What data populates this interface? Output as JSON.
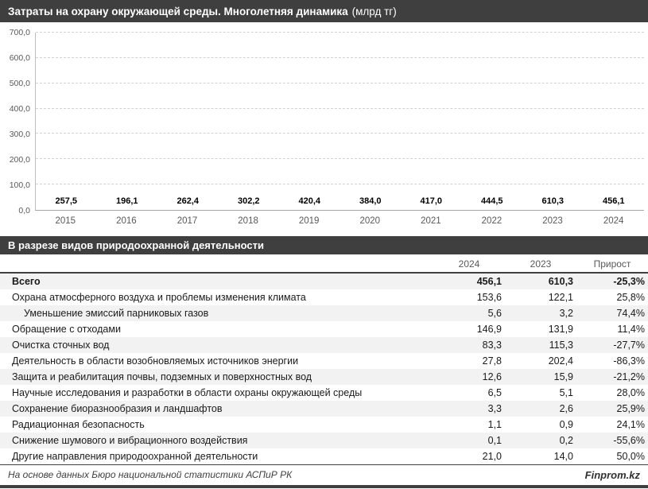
{
  "header": {
    "title": "Затраты на охрану окружающей среды. Многолетняя динамика",
    "unit": "(млрд тг)"
  },
  "chart_data": {
    "type": "bar",
    "title": "Затраты на охрану окружающей среды. Многолетняя динамика (млрд тг)",
    "categories": [
      "2015",
      "2016",
      "2017",
      "2018",
      "2019",
      "2020",
      "2021",
      "2022",
      "2023",
      "2024"
    ],
    "values": [
      257.5,
      196.1,
      262.4,
      302.2,
      420.4,
      384.0,
      417.0,
      444.5,
      610.3,
      456.1
    ],
    "value_labels": [
      "257,5",
      "196,1",
      "262,4",
      "302,2",
      "420,4",
      "384,0",
      "417,0",
      "444,5",
      "610,3",
      "456,1"
    ],
    "ylim": [
      0,
      700
    ],
    "ytick_labels": [
      "0,0",
      "100,0",
      "200,0",
      "300,0",
      "400,0",
      "500,0",
      "600,0",
      "700,0"
    ],
    "grid": true,
    "legend": "none",
    "bar_color": "#404040"
  },
  "table": {
    "title": "В разрезе видов природоохранной деятельности",
    "columns": [
      "2024",
      "2023",
      "Прирост"
    ],
    "rows": [
      {
        "label": "Всего",
        "y2024": "456,1",
        "y2023": "610,3",
        "growth": "-25,3%",
        "bold": true,
        "indent": false
      },
      {
        "label": "Охрана атмосферного воздуха и проблемы изменения климата",
        "y2024": "153,6",
        "y2023": "122,1",
        "growth": "25,8%",
        "bold": false,
        "indent": false
      },
      {
        "label": "Уменьшение эмиссий парниковых газов",
        "y2024": "5,6",
        "y2023": "3,2",
        "growth": "74,4%",
        "bold": false,
        "indent": true
      },
      {
        "label": "Обращение с отходами",
        "y2024": "146,9",
        "y2023": "131,9",
        "growth": "11,4%",
        "bold": false,
        "indent": false
      },
      {
        "label": "Очистка сточных вод",
        "y2024": "83,3",
        "y2023": "115,3",
        "growth": "-27,7%",
        "bold": false,
        "indent": false
      },
      {
        "label": "Деятельность в области возобновляемых источников энергии",
        "y2024": "27,8",
        "y2023": "202,4",
        "growth": "-86,3%",
        "bold": false,
        "indent": false
      },
      {
        "label": "Защита и реабилитация почвы, подземных и поверхностных вод",
        "y2024": "12,6",
        "y2023": "15,9",
        "growth": "-21,2%",
        "bold": false,
        "indent": false
      },
      {
        "label": "Научные исследования и разработки в области охраны окружающей среды",
        "y2024": "6,5",
        "y2023": "5,1",
        "growth": "28,0%",
        "bold": false,
        "indent": false
      },
      {
        "label": "Сохранение биоразнообразия и ландшафтов",
        "y2024": "3,3",
        "y2023": "2,6",
        "growth": "25,9%",
        "bold": false,
        "indent": false
      },
      {
        "label": "Радиационная безопасность",
        "y2024": "1,1",
        "y2023": "0,9",
        "growth": "24,1%",
        "bold": false,
        "indent": false
      },
      {
        "label": "Снижение шумового и вибрационного воздействия",
        "y2024": "0,1",
        "y2023": "0,2",
        "growth": "-55,6%",
        "bold": false,
        "indent": false
      },
      {
        "label": "Другие направления природоохранной деятельности",
        "y2024": "21,0",
        "y2023": "14,0",
        "growth": "50,0%",
        "bold": false,
        "indent": false
      }
    ]
  },
  "footer": {
    "source": "На основе данных Бюро национальной статистики АСПиР РК",
    "brand": "Finprom.kz"
  },
  "colors": {
    "header_bg": "#3f3f3f",
    "bar_fill": "#404040",
    "row_stripe": "#f2f2f2",
    "axis_text": "#595959",
    "gridline": "#d2d2d2"
  }
}
